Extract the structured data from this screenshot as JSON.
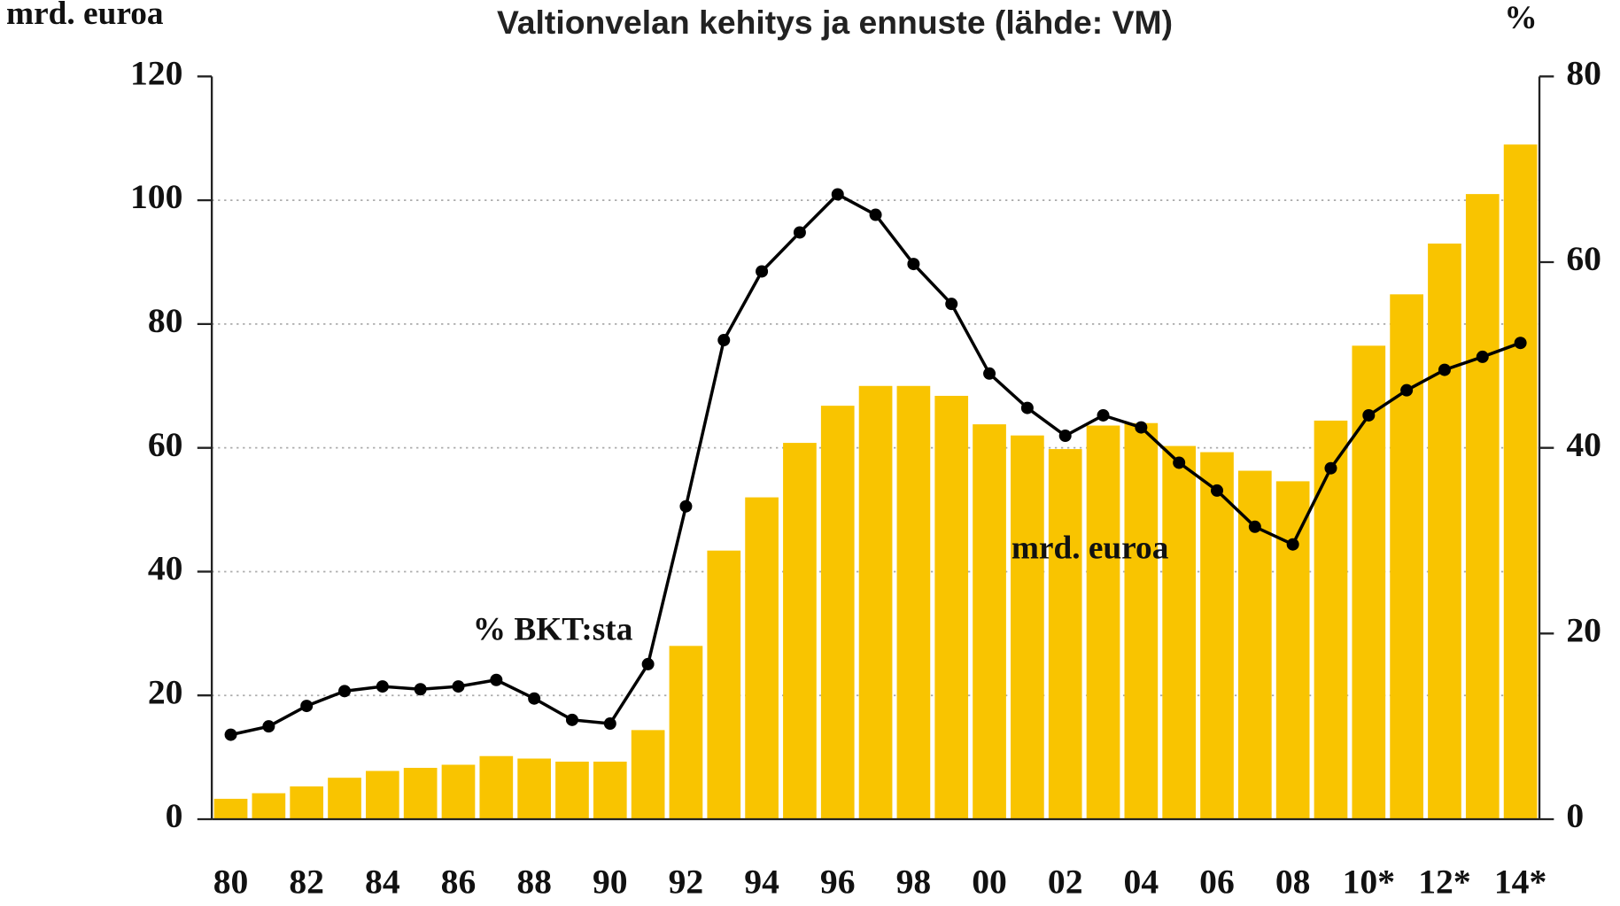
{
  "chart_data": {
    "type": "bar-line",
    "title": "Valtionvelan kehitys ja ennuste (lähde: VM)",
    "y_label": "mrd. euroa",
    "y2_label": "%",
    "categories": [
      "80",
      null,
      "82",
      null,
      "84",
      null,
      "86",
      null,
      "88",
      null,
      "90",
      null,
      "92",
      null,
      "94",
      null,
      "96",
      null,
      "98",
      null,
      "00",
      null,
      "02",
      null,
      "04",
      null,
      "06",
      null,
      "08",
      null,
      "10*",
      null,
      "12*",
      null,
      "14*"
    ],
    "series": [
      {
        "name": "mrd. euroa",
        "type": "bar",
        "color": "#f9c400",
        "values": [
          3.3,
          4.2,
          5.3,
          6.7,
          7.8,
          8.3,
          8.8,
          10.2,
          9.8,
          9.3,
          9.3,
          14.4,
          28,
          43.4,
          52,
          60.8,
          66.8,
          70,
          70,
          68.4,
          63.8,
          62,
          59.8,
          63.6,
          64,
          60.3,
          59.3,
          56.3,
          54.6,
          64.4,
          76.5,
          84.8,
          93,
          101,
          109
        ]
      },
      {
        "name": "% BKT:sta",
        "type": "line",
        "axis": "y2",
        "color": "#000000",
        "values": [
          9.1,
          10,
          12.2,
          13.8,
          14.3,
          14,
          14.3,
          15,
          13,
          10.7,
          10.3,
          16.7,
          33.7,
          51.6,
          59,
          63.2,
          67.3,
          65.1,
          59.8,
          55.5,
          48,
          44.3,
          41.3,
          43.5,
          42.2,
          38.4,
          35.4,
          31.5,
          29.6,
          37.8,
          43.5,
          46.2,
          48.4,
          49.8,
          51.3
        ]
      }
    ],
    "ylim": [
      0,
      120
    ],
    "yticks": [
      0,
      20,
      40,
      60,
      80,
      100,
      120
    ],
    "y2lim": [
      0,
      80
    ],
    "y2ticks": [
      0,
      20,
      40,
      60,
      80
    ],
    "grid": true
  }
}
